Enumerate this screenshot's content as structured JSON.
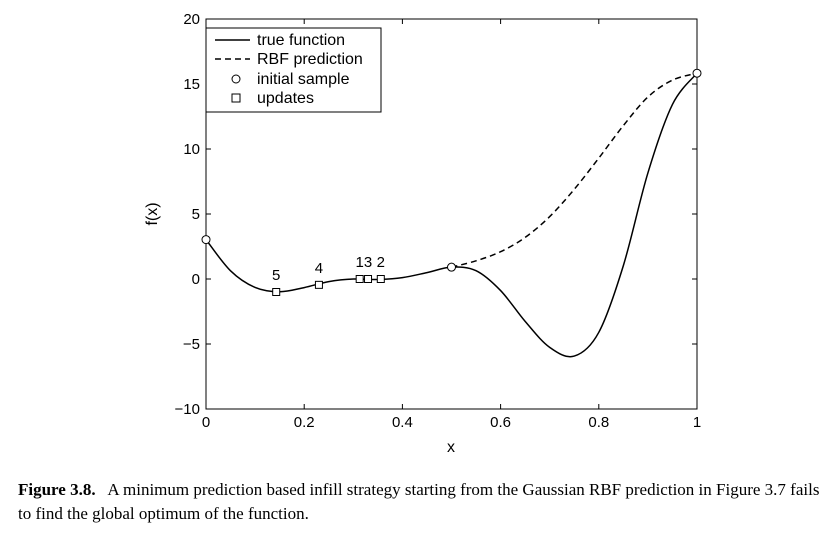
{
  "chart_data": {
    "type": "line",
    "title": "",
    "xlabel": "x",
    "ylabel": "f(x)",
    "xlim": [
      0,
      1
    ],
    "ylim": [
      -10,
      20
    ],
    "xticks": [
      0,
      0.2,
      0.4,
      0.6,
      0.8,
      1
    ],
    "xtick_labels": [
      "0",
      "0.2",
      "0.4",
      "0.6",
      "0.8",
      "1"
    ],
    "yticks": [
      -10,
      -5,
      0,
      5,
      10,
      15,
      20
    ],
    "ytick_labels": [
      "−10",
      "−5",
      "0",
      "5",
      "10",
      "15",
      "20"
    ],
    "grid": false,
    "legend_position": "top-left",
    "series": [
      {
        "name": "true function",
        "style": "solid",
        "x": [
          0,
          0.05,
          0.1,
          0.15,
          0.2,
          0.25,
          0.3,
          0.35,
          0.4,
          0.45,
          0.5,
          0.55,
          0.6,
          0.65,
          0.7,
          0.75,
          0.8,
          0.85,
          0.9,
          0.95,
          1
        ],
        "y": [
          3.03,
          0.63,
          -0.65,
          -0.98,
          -0.66,
          -0.2,
          0,
          -0.04,
          0.11,
          0.49,
          0.91,
          0.64,
          -0.89,
          -3.26,
          -5.26,
          -5.93,
          -4.1,
          1.03,
          8.16,
          13.43,
          15.83
        ]
      },
      {
        "name": "RBF prediction",
        "style": "dashed",
        "x": [
          0.5,
          0.55,
          0.6,
          0.65,
          0.7,
          0.75,
          0.8,
          0.85,
          0.9,
          0.95,
          1
        ],
        "y": [
          0.91,
          1.4,
          2.1,
          3.2,
          4.8,
          6.9,
          9.3,
          11.8,
          14.0,
          15.3,
          15.83
        ]
      },
      {
        "name": "initial sample",
        "marker": "circle",
        "x": [
          0,
          0.5,
          1
        ],
        "y": [
          3.03,
          0.91,
          15.83
        ]
      },
      {
        "name": "updates",
        "marker": "square",
        "x": [
          0.143,
          0.23,
          0.313,
          0.33,
          0.356
        ],
        "y": [
          -1.0,
          -0.45,
          0,
          0,
          0
        ],
        "labels": [
          "5",
          "4",
          "1",
          "3",
          "2"
        ]
      }
    ]
  },
  "caption": {
    "label": "Figure 3.8.",
    "text": "A minimum prediction based infill strategy starting from the Gaussian RBF prediction in Figure 3.7 fails to find the global optimum of the function."
  }
}
